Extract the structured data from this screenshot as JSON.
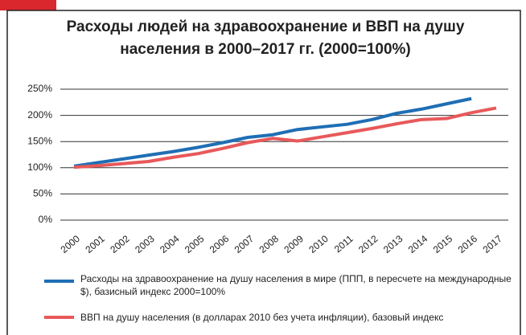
{
  "chart_data": {
    "type": "line",
    "title": [
      "Расходы людей на здравоохранение и ВВП на душу",
      "населения в 2000–2017 гг. (2000=100%)"
    ],
    "categories": [
      "2000",
      "2001",
      "2002",
      "2003",
      "2004",
      "2005",
      "2006",
      "2007",
      "2008",
      "2009",
      "2010",
      "2011",
      "2012",
      "2013",
      "2014",
      "2015",
      "2016",
      "2017"
    ],
    "series": [
      {
        "name": "Расходы на здравоохранение на душу населения в мире (ППП, в пересчете на международные $), базисный индекс 2000=100%",
        "color": "#1f6eb5",
        "values": [
          103,
          110,
          117,
          124,
          131,
          139,
          148,
          158,
          163,
          173,
          178,
          183,
          192,
          204,
          212,
          222,
          232,
          null
        ]
      },
      {
        "name": "ВВП на душу населения (в долларах 2010 без учета инфляции), базовый индекс",
        "color": "#e8595a",
        "values": [
          101,
          104,
          108,
          112,
          120,
          127,
          137,
          148,
          156,
          151,
          159,
          167,
          175,
          184,
          192,
          194,
          205,
          214
        ]
      }
    ],
    "ylim": [
      0,
      250
    ],
    "yticks": [
      {
        "value": 0,
        "label": "0%"
      },
      {
        "value": 50,
        "label": "50%"
      },
      {
        "value": 100,
        "label": "100%"
      },
      {
        "value": 150,
        "label": "150%"
      },
      {
        "value": 200,
        "label": "200%"
      },
      {
        "value": 250,
        "label": "250%"
      }
    ],
    "grid": true
  }
}
